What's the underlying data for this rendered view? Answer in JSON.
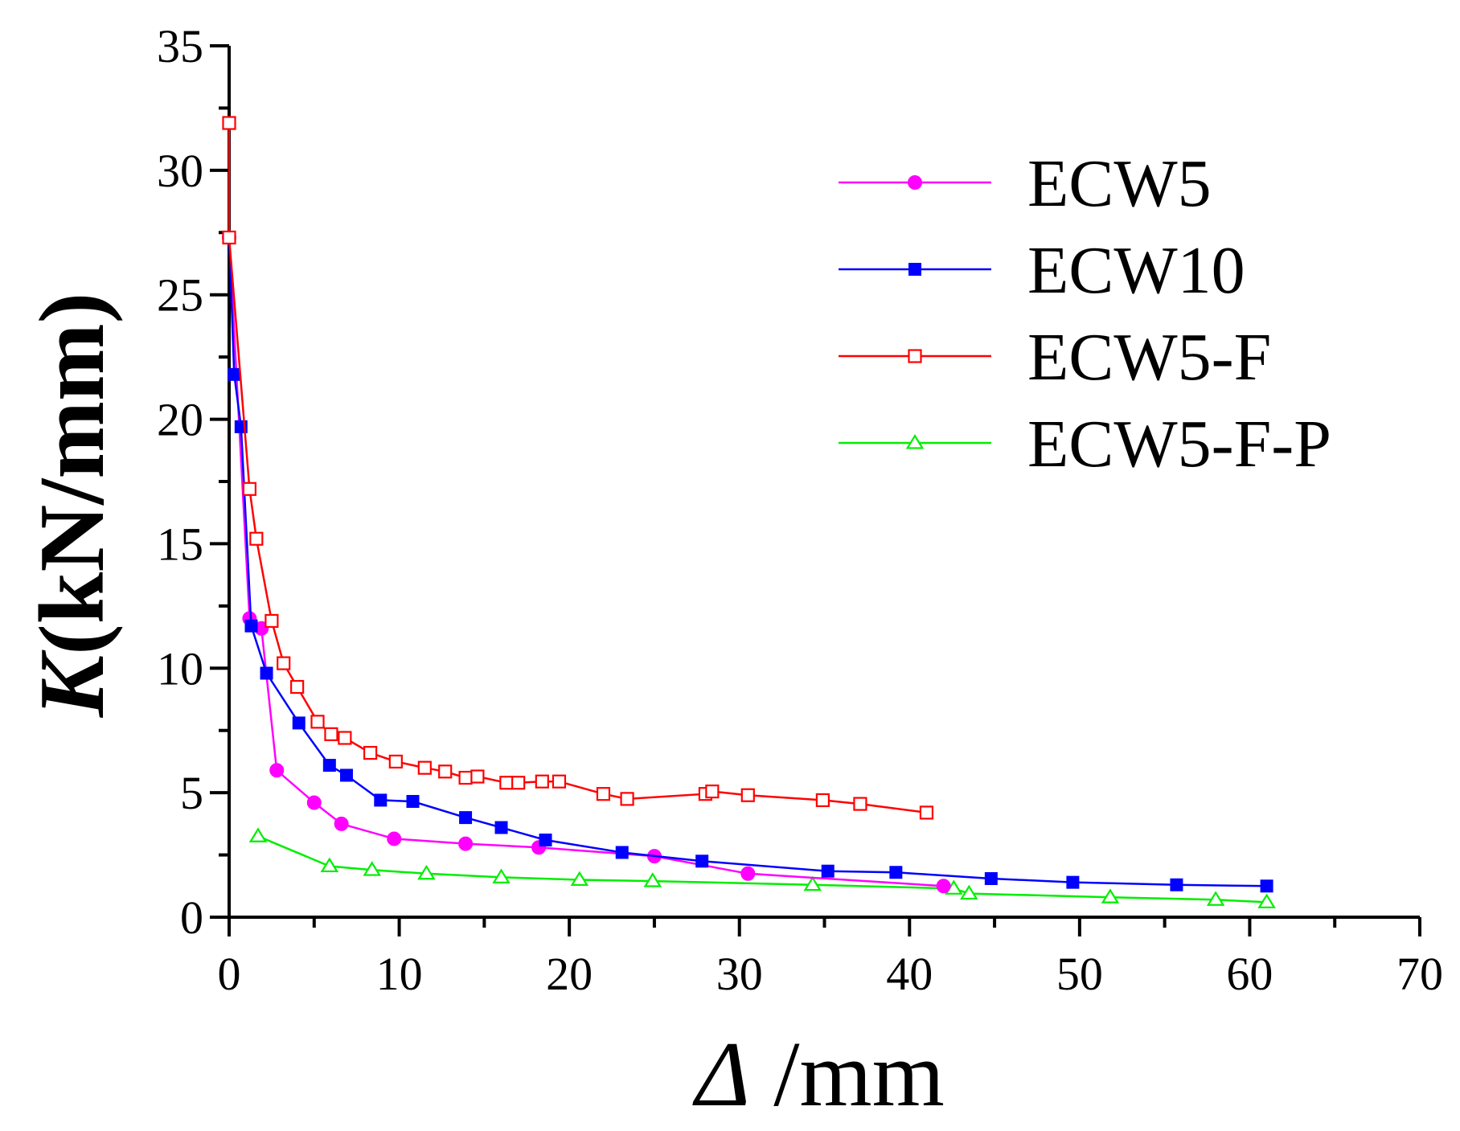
{
  "chart_data": {
    "type": "line",
    "title": "",
    "xlabel": "Δ /mm",
    "xlabel_symbol": "Δ",
    "xlabel_unit": " /mm",
    "ylabel": "K(kN/mm)",
    "ylabel_symbol": "K",
    "ylabel_unit": "(kN/mm)",
    "xlim": [
      0,
      70
    ],
    "ylim": [
      0,
      35
    ],
    "xticks": [
      0,
      10,
      20,
      30,
      40,
      50,
      60,
      70
    ],
    "yticks": [
      0,
      5,
      10,
      15,
      20,
      25,
      30,
      35
    ],
    "grid": false,
    "legend_position": "top-right",
    "series": [
      {
        "name": "ECW5",
        "color": "#ff00ff",
        "marker": "circle",
        "filled": true,
        "points": [
          [
            0,
            27.3
          ],
          [
            1.2,
            12.0
          ],
          [
            1.9,
            11.6
          ],
          [
            2.8,
            5.9
          ],
          [
            5.0,
            4.6
          ],
          [
            6.6,
            3.75
          ],
          [
            9.7,
            3.15
          ],
          [
            13.9,
            2.95
          ],
          [
            18.2,
            2.8
          ],
          [
            25.0,
            2.45
          ],
          [
            30.5,
            1.75
          ],
          [
            42.0,
            1.25
          ]
        ]
      },
      {
        "name": "ECW10",
        "color": "#0000ff",
        "marker": "square",
        "filled": true,
        "points": [
          [
            0,
            27.3
          ],
          [
            0.3,
            21.8
          ],
          [
            0.7,
            19.7
          ],
          [
            1.3,
            11.7
          ],
          [
            2.2,
            9.8
          ],
          [
            4.1,
            7.8
          ],
          [
            5.9,
            6.1
          ],
          [
            6.9,
            5.7
          ],
          [
            8.9,
            4.7
          ],
          [
            10.8,
            4.65
          ],
          [
            13.9,
            4.0
          ],
          [
            16.0,
            3.6
          ],
          [
            18.6,
            3.1
          ],
          [
            23.1,
            2.6
          ],
          [
            27.8,
            2.25
          ],
          [
            35.2,
            1.85
          ],
          [
            39.2,
            1.8
          ],
          [
            44.8,
            1.55
          ],
          [
            49.6,
            1.4
          ],
          [
            55.7,
            1.3
          ],
          [
            61.0,
            1.25
          ]
        ]
      },
      {
        "name": "ECW5-F",
        "color": "#ff0000",
        "marker": "square",
        "filled": false,
        "points": [
          [
            0,
            31.9
          ],
          [
            0,
            27.3
          ],
          [
            1.2,
            17.2
          ],
          [
            1.6,
            15.2
          ],
          [
            2.5,
            11.9
          ],
          [
            3.2,
            10.2
          ],
          [
            4.0,
            9.25
          ],
          [
            5.2,
            7.85
          ],
          [
            6.0,
            7.35
          ],
          [
            6.8,
            7.2
          ],
          [
            8.3,
            6.6
          ],
          [
            9.8,
            6.25
          ],
          [
            11.5,
            6.0
          ],
          [
            12.7,
            5.85
          ],
          [
            13.9,
            5.6
          ],
          [
            14.6,
            5.65
          ],
          [
            16.3,
            5.4
          ],
          [
            17.0,
            5.4
          ],
          [
            18.4,
            5.45
          ],
          [
            19.4,
            5.45
          ],
          [
            22.0,
            4.95
          ],
          [
            23.4,
            4.75
          ],
          [
            28.0,
            4.95
          ],
          [
            28.4,
            5.05
          ],
          [
            30.5,
            4.9
          ],
          [
            34.9,
            4.7
          ],
          [
            37.1,
            4.55
          ],
          [
            41.0,
            4.2
          ]
        ]
      },
      {
        "name": "ECW5-F-P",
        "color": "#00ee00",
        "marker": "triangle",
        "filled": false,
        "points": [
          [
            1.7,
            3.25
          ],
          [
            5.9,
            2.05
          ],
          [
            8.4,
            1.9
          ],
          [
            11.6,
            1.75
          ],
          [
            16.0,
            1.6
          ],
          [
            20.6,
            1.5
          ],
          [
            24.9,
            1.45
          ],
          [
            34.3,
            1.3
          ],
          [
            42.6,
            1.15
          ],
          [
            43.5,
            0.95
          ],
          [
            51.8,
            0.8
          ],
          [
            58.0,
            0.7
          ],
          [
            61.0,
            0.6
          ]
        ]
      }
    ]
  }
}
